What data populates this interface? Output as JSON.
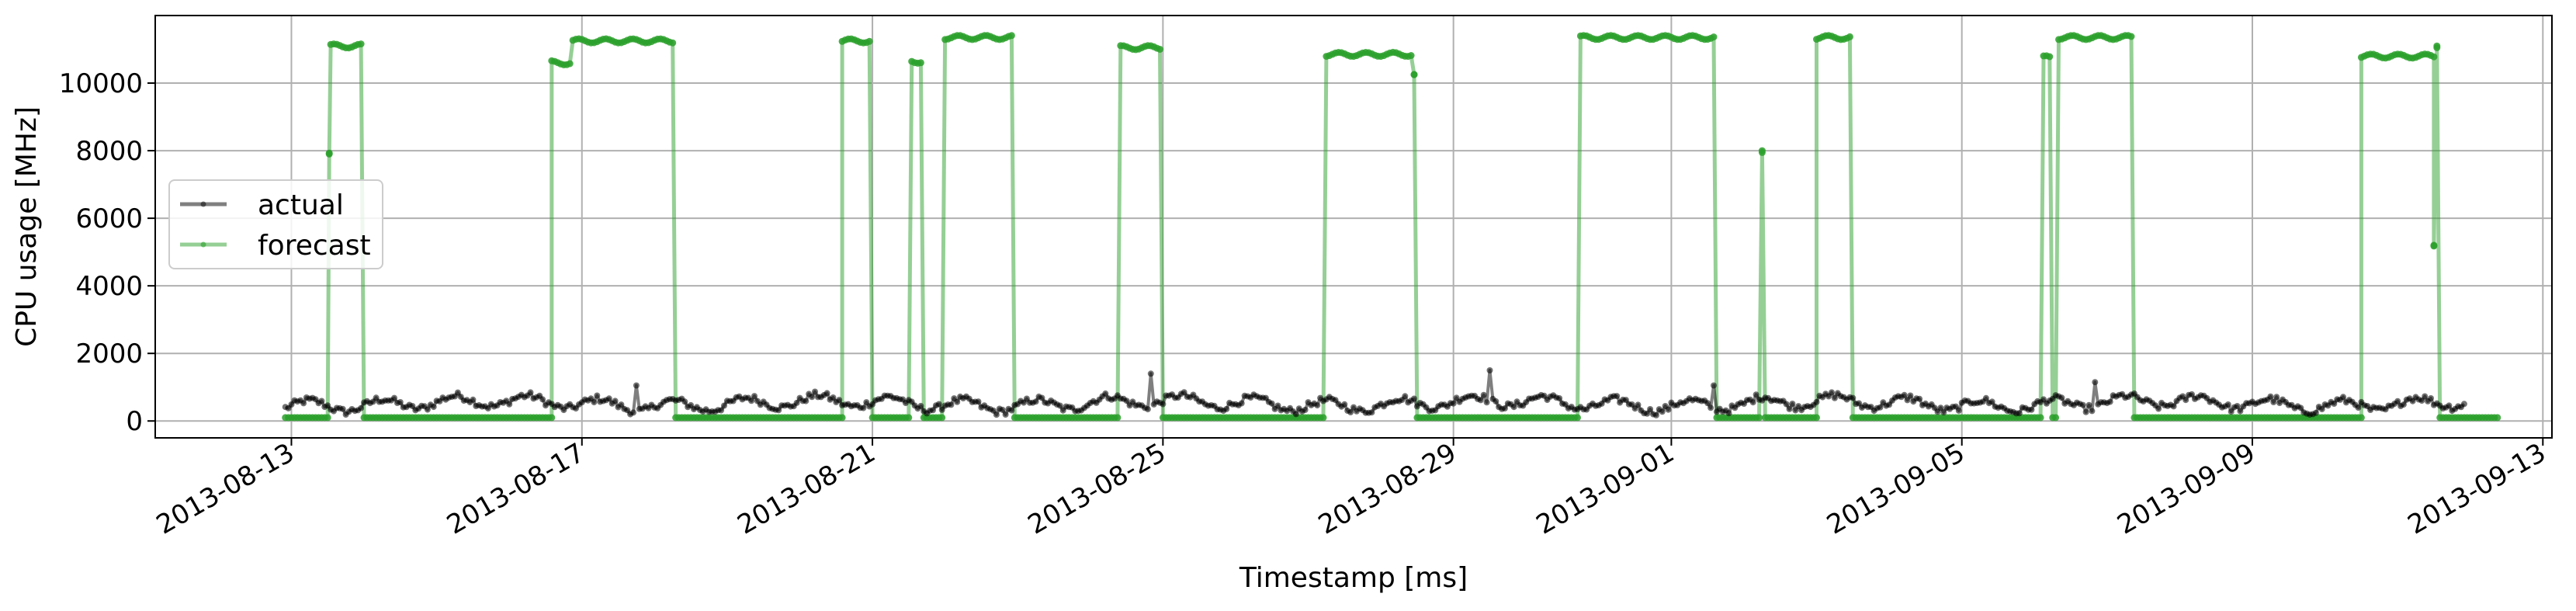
{
  "chart_data": {
    "type": "line",
    "xlabel": "Timestamp [ms]",
    "ylabel": "CPU usage [MHz]",
    "xlim": [
      "2013-08-11T03:00",
      "2013-09-13T03:00"
    ],
    "ylim": [
      -500,
      12000
    ],
    "x_ticks": [
      "2013-08-13",
      "2013-08-17",
      "2013-08-21",
      "2013-08-25",
      "2013-08-29",
      "2013-09-01",
      "2013-09-05",
      "2013-09-09",
      "2013-09-13"
    ],
    "y_ticks": [
      0,
      2000,
      4000,
      6000,
      8000,
      10000
    ],
    "grid": true,
    "legend_position": "center-left",
    "sampling_interval": "1 hour (approx.)",
    "series": [
      {
        "name": "actual",
        "color": "#000000",
        "note": "noisy baseline, roughly 200-900 MHz with occasional spikes to ~1500",
        "segments": [
          {
            "start": "2013-08-12T22:00",
            "end": "2013-09-11T22:00",
            "min": 100,
            "max": 1000,
            "typical": 520
          }
        ],
        "spikes": [
          {
            "x": "2013-08-17T18:00",
            "y": 1050
          },
          {
            "x": "2013-08-24T20:00",
            "y": 1400
          },
          {
            "x": "2013-08-29T12:00",
            "y": 1500
          },
          {
            "x": "2013-09-01T14:00",
            "y": 1050
          },
          {
            "x": "2013-09-06T20:00",
            "y": 1150
          }
        ]
      },
      {
        "name": "forecast",
        "color": "#2ca02c",
        "note": "step-like: low plateau ~100 MHz, high plateaus ~10,500-11,400 MHz",
        "segments": [
          {
            "start": "2013-08-12T22:00",
            "end": "2013-08-13T12:00",
            "value": 100
          },
          {
            "start": "2013-08-13T12:30",
            "end": "2013-08-13T12:30",
            "value": 7900
          },
          {
            "start": "2013-08-13T13:00",
            "end": "2013-08-13T23:00",
            "value": 11100
          },
          {
            "start": "2013-08-14T00:00",
            "end": "2013-08-16T14:00",
            "value": 100
          },
          {
            "start": "2013-08-16T14:00",
            "end": "2013-08-16T20:00",
            "value": 10600
          },
          {
            "start": "2013-08-16T21:00",
            "end": "2013-08-18T06:00",
            "value": 11250
          },
          {
            "start": "2013-08-18T07:00",
            "end": "2013-08-20T14:00",
            "value": 100
          },
          {
            "start": "2013-08-20T14:00",
            "end": "2013-08-20T23:00",
            "value": 11250
          },
          {
            "start": "2013-08-21T00:00",
            "end": "2013-08-21T12:00",
            "value": 100
          },
          {
            "start": "2013-08-21T13:00",
            "end": "2013-08-21T16:00",
            "value": 10650
          },
          {
            "start": "2013-08-21T17:00",
            "end": "2013-08-21T23:00",
            "value": 100
          },
          {
            "start": "2013-08-22T00:00",
            "end": "2013-08-22T22:00",
            "value": 11350
          },
          {
            "start": "2013-08-22T23:00",
            "end": "2013-08-24T09:00",
            "value": 100
          },
          {
            "start": "2013-08-24T10:00",
            "end": "2013-08-24T23:00",
            "value": 11050
          },
          {
            "start": "2013-08-25T00:00",
            "end": "2013-08-27T05:00",
            "value": 100
          },
          {
            "start": "2013-08-27T06:00",
            "end": "2013-08-28T10:00",
            "value": 10850
          },
          {
            "start": "2013-08-28T11:00",
            "end": "2013-08-28T11:00",
            "value": 10250
          },
          {
            "start": "2013-08-28T12:00",
            "end": "2013-08-30T17:00",
            "value": 100
          },
          {
            "start": "2013-08-30T18:00",
            "end": "2013-09-01T14:00",
            "value": 11350
          },
          {
            "start": "2013-09-01T15:00",
            "end": "2013-09-02T05:00",
            "value": 100
          },
          {
            "start": "2013-09-02T06:00",
            "end": "2013-09-02T06:00",
            "value": 8000
          },
          {
            "start": "2013-09-02T07:00",
            "end": "2013-09-03T00:00",
            "value": 100
          },
          {
            "start": "2013-09-03T00:00",
            "end": "2013-09-03T11:00",
            "value": 11350
          },
          {
            "start": "2013-09-03T12:00",
            "end": "2013-09-06T02:00",
            "value": 100
          },
          {
            "start": "2013-09-06T03:00",
            "end": "2013-09-06T05:00",
            "value": 10750
          },
          {
            "start": "2013-09-06T06:00",
            "end": "2013-09-06T07:00",
            "value": 100
          },
          {
            "start": "2013-09-06T08:00",
            "end": "2013-09-07T08:00",
            "value": 11350
          },
          {
            "start": "2013-09-07T09:00",
            "end": "2013-09-10T12:00",
            "value": 100
          },
          {
            "start": "2013-09-10T12:00",
            "end": "2013-09-11T12:00",
            "value": 10800
          },
          {
            "start": "2013-09-11T12:00",
            "end": "2013-09-11T12:00",
            "value": 5200
          },
          {
            "start": "2013-09-11T13:00",
            "end": "2013-09-11T13:00",
            "value": 11100
          },
          {
            "start": "2013-09-11T14:00",
            "end": "2013-09-12T09:00",
            "value": 100
          }
        ]
      }
    ]
  }
}
